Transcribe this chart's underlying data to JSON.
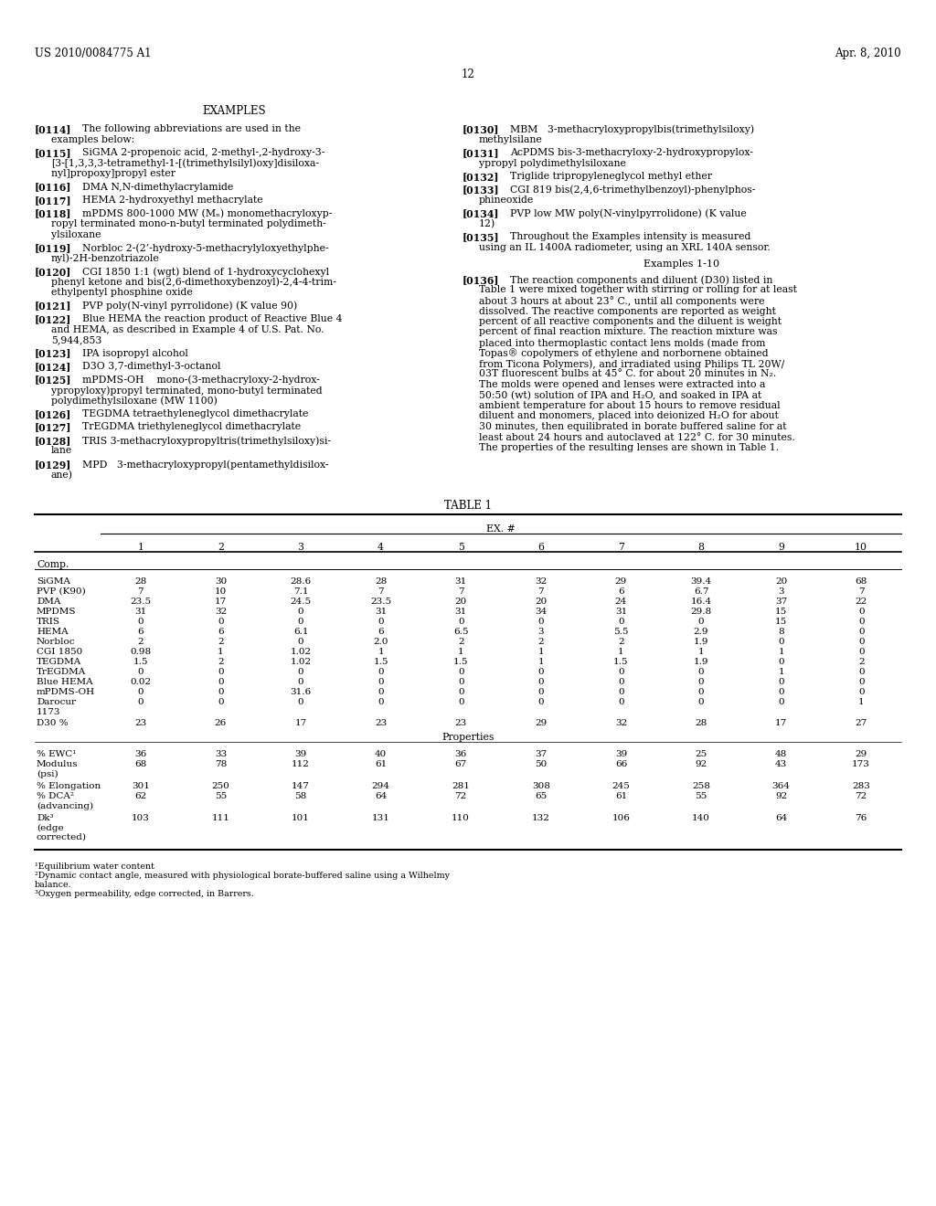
{
  "background_color": "#ffffff",
  "header_left": "US 2010/0084775 A1",
  "header_right": "Apr. 8, 2010",
  "page_number": "12",
  "section_title": "EXAMPLES",
  "left_paragraphs": [
    {
      "tag": "[0114]",
      "text": "The following abbreviations are used in the\nexamples below:"
    },
    {
      "tag": "[0115]",
      "text": "SiGMA 2-propenoic acid, 2-methyl-,2-hydroxy-3-\n[3-[1,3,3,3-tetramethyl-1-[(trimethylsilyl)oxy]disiloxa-\nnyl]propoxy]propyl ester"
    },
    {
      "tag": "[0116]",
      "text": "DMA N,N-dimethylacrylamide"
    },
    {
      "tag": "[0117]",
      "text": "HEMA 2-hydroxyethyl methacrylate"
    },
    {
      "tag": "[0118]",
      "text": "mPDMS 800-1000 MW (Mₙ) monomethacryloxyp-\nropyl terminated mono-n-butyl terminated polydimeth-\nylsiloxane"
    },
    {
      "tag": "[0119]",
      "text": "Norbloc 2-(2’-hydroxy-5-methacrylyloxyethylphe-\nnyl)-2H-benzotriazole"
    },
    {
      "tag": "[0120]",
      "text": "CGI 1850 1:1 (wgt) blend of 1-hydroxycyclohexyl\nphenyl ketone and bis(2,6-dimethoxybenzoyl)-2,4-4-trim-\nethylpentyl phosphine oxide"
    },
    {
      "tag": "[0121]",
      "text": "PVP poly(N-vinyl pyrrolidone) (K value 90)"
    },
    {
      "tag": "[0122]",
      "text": "Blue HEMA the reaction product of Reactive Blue 4\nand HEMA, as described in Example 4 of U.S. Pat. No.\n5,944,853"
    },
    {
      "tag": "[0123]",
      "text": "IPA isopropyl alcohol"
    },
    {
      "tag": "[0124]",
      "text": "D3O 3,7-dimethyl-3-octanol"
    },
    {
      "tag": "[0125]",
      "text": "mPDMS-OH    mono-(3-methacryloxy-2-hydrox-\nypropyloxy)propyl terminated, mono-butyl terminated\npolydimethylsiloxane (MW 1100)"
    },
    {
      "tag": "[0126]",
      "text": "TEGDMA tetraethyleneglycol dimethacrylate"
    },
    {
      "tag": "[0127]",
      "text": "TrEGDMA triethyleneglycol dimethacrylate"
    },
    {
      "tag": "[0128]",
      "text": "TRIS 3-methacryloxypropyltris(trimethylsiloxy)si-\nlane"
    },
    {
      "tag": "[0129]",
      "text": "MPD   3-methacryloxypropyl(pentamethyldisilox-\nane)"
    }
  ],
  "right_paragraphs": [
    {
      "tag": "[0130]",
      "text": "MBM   3-methacryloxypropylbis(trimethylsiloxy)\nmethylsilane"
    },
    {
      "tag": "[0131]",
      "text": "AcPDMS bis-3-methacryloxy-2-hydroxypropylox-\nypropyl polydimethylsiloxane"
    },
    {
      "tag": "[0132]",
      "text": "Triglide tripropyleneglycol methyl ether"
    },
    {
      "tag": "[0133]",
      "text": "CGI 819 bis(2,4,6-trimethylbenzoyl)-phenylphos-\nphineoxide"
    },
    {
      "tag": "[0134]",
      "text": "PVP low MW poly(N-vinylpyrrolidone) (K value\n12)"
    },
    {
      "tag": "[0135]",
      "text": "Throughout the Examples intensity is measured\nusing an IL 1400A radiometer, using an XRL 140A sensor."
    },
    {
      "tag": "examples_heading",
      "text": "Examples 1-10"
    },
    {
      "tag": "[0136]",
      "text": "The reaction components and diluent (D30) listed in\nTable 1 were mixed together with stirring or rolling for at least\nabout 3 hours at about 23° C., until all components were\ndissolved. The reactive components are reported as weight\npercent of all reactive components and the diluent is weight\npercent of final reaction mixture. The reaction mixture was\nplaced into thermoplastic contact lens molds (made from\nTopas® copolymers of ethylene and norbornene obtained\nfrom Ticona Polymers), and irradiated using Philips TL 20W/\n03T fluorescent bulbs at 45° C. for about 20 minutes in N₂.\nThe molds were opened and lenses were extracted into a\n50:50 (wt) solution of IPA and H₂O, and soaked in IPA at\nambient temperature for about 15 hours to remove residual\ndiluent and monomers, placed into deionized H₂O for about\n30 minutes, then equilibrated in borate buffered saline for at\nleast about 24 hours and autoclaved at 122° C. for 30 minutes.\nThe properties of the resulting lenses are shown in Table 1."
    }
  ],
  "table_title": "TABLE 1",
  "table_header_group": "EX. #",
  "table_comp_rows": [
    [
      "SiGMA",
      "28",
      "30",
      "28.6",
      "28",
      "31",
      "32",
      "29",
      "39.4",
      "20",
      "68"
    ],
    [
      "PVP (K90)",
      "7",
      "10",
      "7.1",
      "7",
      "7",
      "7",
      "6",
      "6.7",
      "3",
      "7"
    ],
    [
      "DMA",
      "23.5",
      "17",
      "24.5",
      "23.5",
      "20",
      "20",
      "24",
      "16.4",
      "37",
      "22"
    ],
    [
      "MPDMS",
      "31",
      "32",
      "0",
      "31",
      "31",
      "34",
      "31",
      "29.8",
      "15",
      "0"
    ],
    [
      "TRIS",
      "0",
      "0",
      "0",
      "0",
      "0",
      "0",
      "0",
      "0",
      "15",
      "0"
    ],
    [
      "HEMA",
      "6",
      "6",
      "6.1",
      "6",
      "6.5",
      "3",
      "5.5",
      "2.9",
      "8",
      "0"
    ],
    [
      "Norbloc",
      "2",
      "2",
      "0",
      "2.0",
      "2",
      "2",
      "2",
      "1.9",
      "0",
      "0"
    ],
    [
      "CGI 1850",
      "0.98",
      "1",
      "1.02",
      "1",
      "1",
      "1",
      "1",
      "1",
      "1",
      "0"
    ],
    [
      "TEGDMA",
      "1.5",
      "2",
      "1.02",
      "1.5",
      "1.5",
      "1",
      "1.5",
      "1.9",
      "0",
      "2"
    ],
    [
      "TrEGDMA",
      "0",
      "0",
      "0",
      "0",
      "0",
      "0",
      "0",
      "0",
      "1",
      "0"
    ],
    [
      "Blue HEMA",
      "0.02",
      "0",
      "0",
      "0",
      "0",
      "0",
      "0",
      "0",
      "0",
      "0"
    ],
    [
      "mPDMS-OH",
      "0",
      "0",
      "31.6",
      "0",
      "0",
      "0",
      "0",
      "0",
      "0",
      "0"
    ],
    [
      "Darocur\n1173",
      "0",
      "0",
      "0",
      "0",
      "0",
      "0",
      "0",
      "0",
      "0",
      "1"
    ],
    [
      "D30 %",
      "23",
      "26",
      "17",
      "23",
      "23",
      "29",
      "32",
      "28",
      "17",
      "27"
    ]
  ],
  "table_prop_rows": [
    [
      "% EWC¹",
      "36",
      "33",
      "39",
      "40",
      "36",
      "37",
      "39",
      "25",
      "48",
      "29"
    ],
    [
      "Modulus\n(psi)",
      "68",
      "78",
      "112",
      "61",
      "67",
      "50",
      "66",
      "92",
      "43",
      "173"
    ],
    [
      "% Elongation",
      "301",
      "250",
      "147",
      "294",
      "281",
      "308",
      "245",
      "258",
      "364",
      "283"
    ],
    [
      "% DCA²\n(advancing)",
      "62",
      "55",
      "58",
      "64",
      "72",
      "65",
      "61",
      "55",
      "92",
      "72"
    ],
    [
      "Dk³\n(edge\ncorrected)",
      "103",
      "111",
      "101",
      "131",
      "110",
      "132",
      "106",
      "140",
      "64",
      "76"
    ]
  ],
  "footnotes": [
    "¹Equilibrium water content",
    "²Dynamic contact angle, measured with physiological borate-buffered saline using a Wilhelmy\nbalance.",
    "³Oxygen permeability, edge corrected, in Barrers."
  ]
}
